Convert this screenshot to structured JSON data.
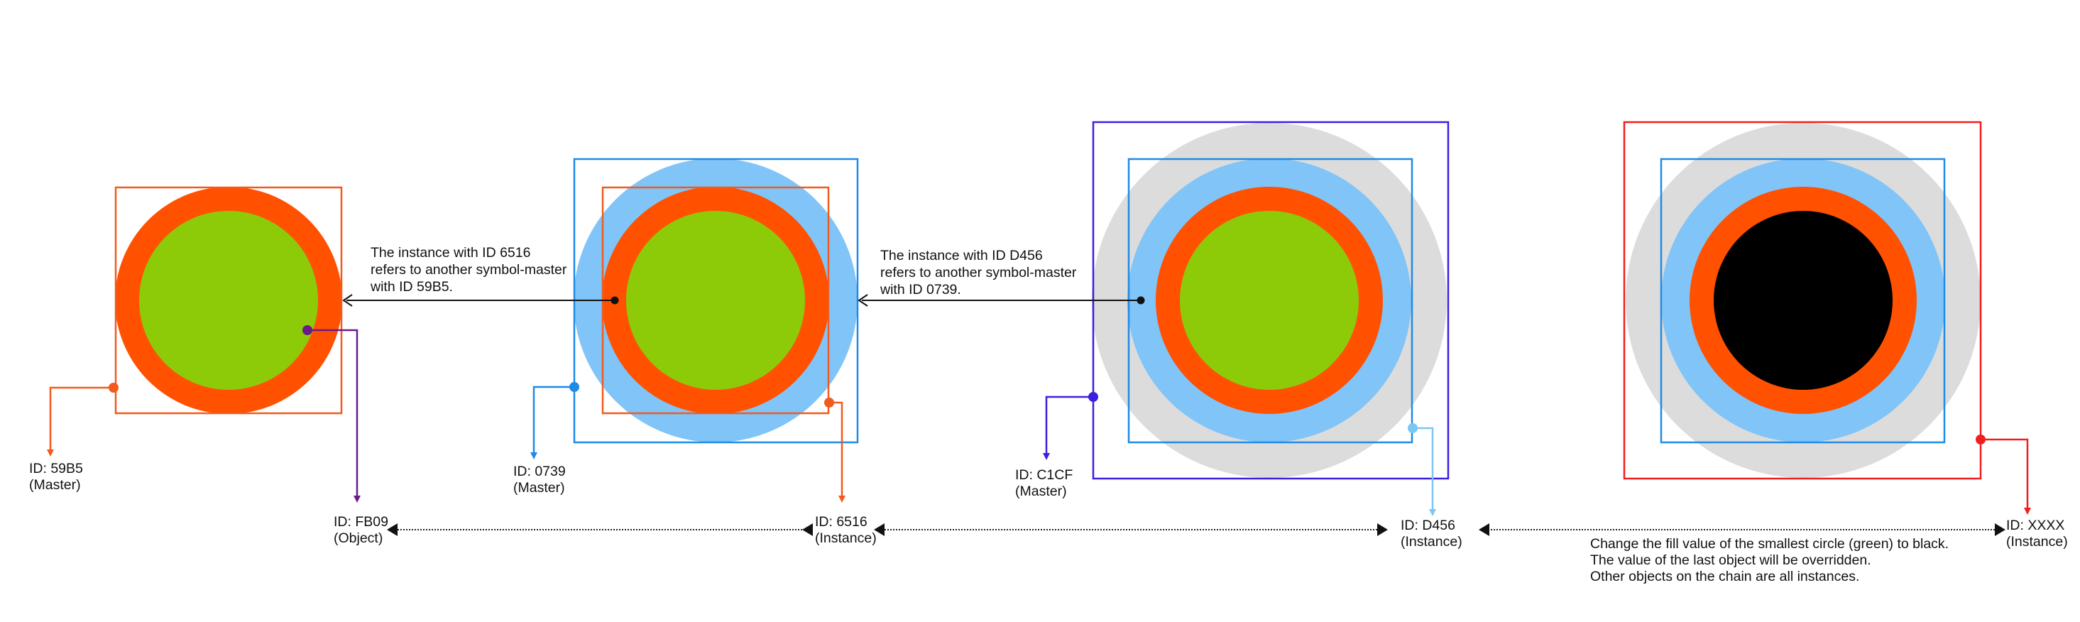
{
  "colors": {
    "green": "#8DCB08",
    "orange": "#FF5100",
    "light_blue": "#80C4F8",
    "gray": "#DCDCDC",
    "black": "#000000",
    "blue_line": "#1E8BE6",
    "orange_line": "#F25A1E",
    "purple": "#6B1A8A",
    "indigo": "#3A1FE0",
    "red": "#F01E1E",
    "sky": "#7CC6F6"
  },
  "nodes": {
    "n59b5": {
      "id": "ID: 59B5",
      "role": "(Master)"
    },
    "nfb09": {
      "id": "ID: FB09",
      "role": "(Object)"
    },
    "n0739": {
      "id": "ID: 0739",
      "role": "(Master)"
    },
    "n6516": {
      "id": "ID: 6516",
      "role": "(Instance)"
    },
    "nc1cf": {
      "id": "ID: C1CF",
      "role": "(Master)"
    },
    "nd456": {
      "id": "ID: D456",
      "role": "(Instance)"
    },
    "nxxxx": {
      "id": "ID: XXXX",
      "role": "(Instance)"
    }
  },
  "annotations": {
    "ref1": [
      "The instance with ID 6516",
      "refers to another symbol-master",
      "with ID 59B5."
    ],
    "ref2": [
      "The instance with ID D456",
      "refers to another symbol-master",
      "with ID 0739."
    ],
    "override": [
      "Change the fill value of the smallest circle (green) to black.",
      "The value of the last object will be overridden.",
      "Other objects on the chain are all instances."
    ]
  }
}
